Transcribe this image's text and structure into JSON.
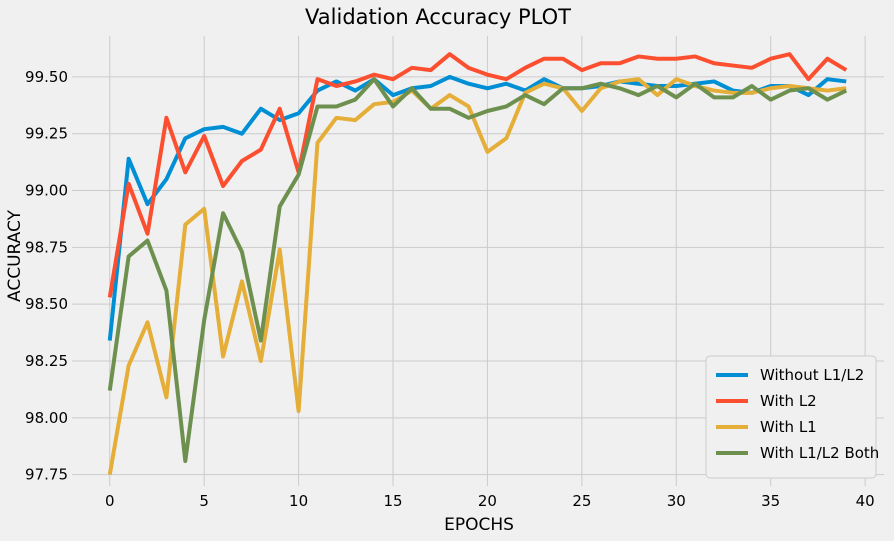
{
  "chart_data": {
    "type": "line",
    "title": "Validation Accuracy PLOT",
    "xlabel": "EPOCHS",
    "ylabel": "ACCURACY",
    "xlim": [
      -2,
      41
    ],
    "ylim": [
      97.7,
      99.68
    ],
    "xticks": [
      0,
      5,
      10,
      15,
      20,
      25,
      30,
      35,
      40
    ],
    "yticks": [
      97.75,
      98.0,
      98.25,
      98.5,
      98.75,
      99.0,
      99.25,
      99.5
    ],
    "ytick_labels": [
      "97.75",
      "98.00",
      "98.25",
      "98.50",
      "98.75",
      "99.00",
      "99.25",
      "99.50"
    ],
    "grid": true,
    "legend_position": "lower-right",
    "x": [
      0,
      1,
      2,
      3,
      4,
      5,
      6,
      7,
      8,
      9,
      10,
      11,
      12,
      13,
      14,
      15,
      16,
      17,
      18,
      19,
      20,
      21,
      22,
      23,
      24,
      25,
      26,
      27,
      28,
      29,
      30,
      31,
      32,
      33,
      34,
      35,
      36,
      37,
      38,
      39
    ],
    "series": [
      {
        "name": "Without L1/L2",
        "color": "#008fd5",
        "values": [
          98.34,
          99.14,
          98.94,
          99.05,
          99.23,
          99.27,
          99.28,
          99.25,
          99.36,
          99.31,
          99.34,
          99.44,
          99.48,
          99.44,
          99.49,
          99.42,
          99.45,
          99.46,
          99.5,
          99.47,
          99.45,
          99.47,
          99.44,
          99.49,
          99.45,
          99.45,
          99.46,
          99.48,
          99.47,
          99.46,
          99.46,
          99.47,
          99.48,
          99.44,
          99.43,
          99.46,
          99.46,
          99.42,
          99.49,
          99.48
        ]
      },
      {
        "name": "With L2",
        "color": "#fc4f30",
        "values": [
          98.53,
          99.03,
          98.81,
          99.32,
          99.08,
          99.24,
          99.02,
          99.13,
          99.18,
          99.36,
          99.08,
          99.49,
          99.46,
          99.48,
          99.51,
          99.49,
          99.54,
          99.53,
          99.6,
          99.54,
          99.51,
          99.49,
          99.54,
          99.58,
          99.58,
          99.53,
          99.56,
          99.56,
          99.59,
          99.58,
          99.58,
          99.59,
          99.56,
          99.55,
          99.54,
          99.58,
          99.6,
          99.49,
          99.58,
          99.53
        ]
      },
      {
        "name": "With L1",
        "color": "#e5ae38",
        "values": [
          97.75,
          98.23,
          98.42,
          98.09,
          98.85,
          98.92,
          98.27,
          98.6,
          98.25,
          98.74,
          98.03,
          99.21,
          99.32,
          99.31,
          99.38,
          99.39,
          99.44,
          99.36,
          99.42,
          99.37,
          99.17,
          99.23,
          99.43,
          99.47,
          99.45,
          99.35,
          99.45,
          99.48,
          99.49,
          99.42,
          99.49,
          99.46,
          99.44,
          99.43,
          99.43,
          99.45,
          99.46,
          99.45,
          99.44,
          99.45
        ]
      },
      {
        "name": "With L1/L2 Both",
        "color": "#6d904f",
        "values": [
          98.12,
          98.71,
          98.78,
          98.56,
          97.81,
          98.43,
          98.9,
          98.73,
          98.34,
          98.93,
          99.07,
          99.37,
          99.37,
          99.4,
          99.49,
          99.37,
          99.45,
          99.36,
          99.36,
          99.32,
          99.35,
          99.37,
          99.42,
          99.38,
          99.45,
          99.45,
          99.47,
          99.45,
          99.42,
          99.46,
          99.41,
          99.47,
          99.41,
          99.41,
          99.46,
          99.4,
          99.44,
          99.45,
          99.4,
          99.44
        ]
      }
    ]
  }
}
